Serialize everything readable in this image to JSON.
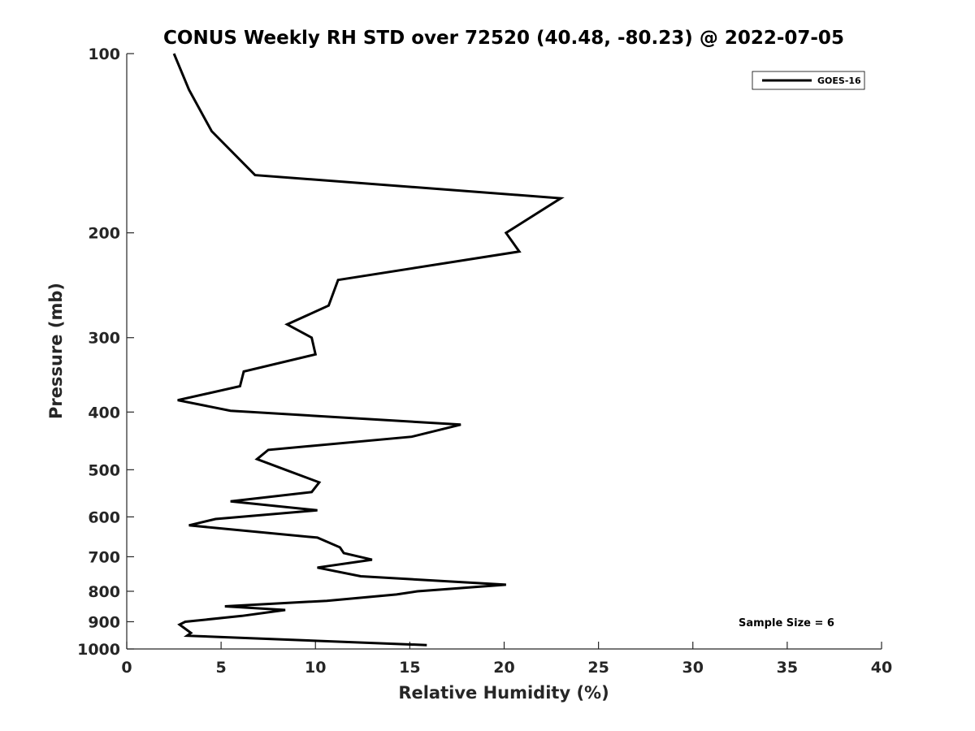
{
  "chart_data": {
    "type": "line",
    "title": "CONUS Weekly RH STD over 72520 (40.48, -80.23) @ 2022-07-05",
    "xlabel": "Relative Humidity (%)",
    "ylabel": "Pressure (mb)",
    "xlim": [
      0,
      40
    ],
    "ylim": [
      100,
      1000
    ],
    "y_scale": "log",
    "y_reversed": true,
    "x_ticks": [
      "0",
      "5",
      "10",
      "15",
      "20",
      "25",
      "30",
      "35",
      "40"
    ],
    "y_ticks": [
      "100",
      "200",
      "300",
      "400",
      "500",
      "600",
      "700",
      "800",
      "900",
      "1000"
    ],
    "grid": false,
    "legend_position": "top-right",
    "annotation": "Sample Size = 6",
    "colors": {
      "series": "#000000",
      "axis": "#262626"
    },
    "series": [
      {
        "name": "GOES-16",
        "x": [
          2.5,
          3.3,
          4.5,
          6.8,
          23.0,
          20.1,
          20.8,
          11.2,
          10.7,
          8.5,
          9.8,
          10.0,
          6.2,
          6.0,
          2.7,
          5.5,
          17.7,
          15.1,
          7.5,
          6.9,
          8.4,
          10.2,
          9.8,
          5.5,
          10.1,
          4.7,
          3.3,
          10.1,
          11.3,
          11.5,
          13.0,
          10.1,
          12.4,
          20.1,
          15.4,
          14.3,
          10.6,
          5.2,
          8.4,
          6.1,
          3.1,
          2.8,
          3.4,
          3.2,
          15.9
        ],
        "y": [
          100,
          115,
          135,
          160,
          175,
          200,
          215,
          240,
          265,
          285,
          300,
          320,
          342,
          362,
          382,
          398,
          420,
          440,
          463,
          480,
          500,
          525,
          545,
          565,
          585,
          605,
          620,
          650,
          675,
          690,
          708,
          730,
          755,
          780,
          800,
          810,
          830,
          848,
          860,
          880,
          900,
          910,
          940,
          950,
          985
        ]
      }
    ]
  }
}
